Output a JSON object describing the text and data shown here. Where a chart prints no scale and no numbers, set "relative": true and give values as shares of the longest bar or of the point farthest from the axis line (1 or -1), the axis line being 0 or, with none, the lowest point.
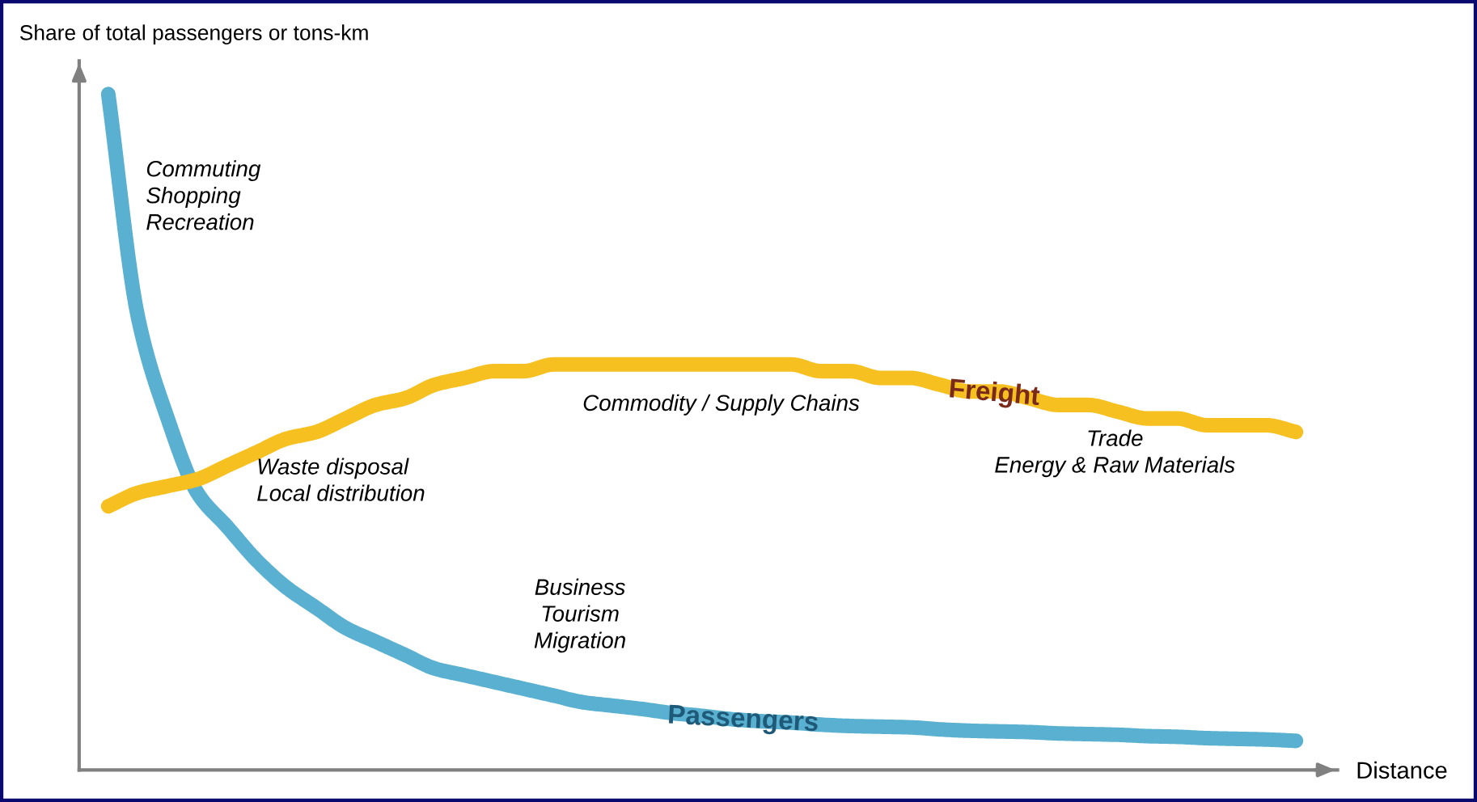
{
  "chart_data": {
    "type": "line",
    "relative": true,
    "ylabel": "Share of total passengers or tons-km",
    "xlabel": "Distance",
    "categories": [
      null,
      null,
      null,
      null,
      null,
      null,
      null,
      null,
      null,
      null,
      null,
      null,
      null,
      null,
      null,
      null,
      null,
      null,
      null,
      null,
      null,
      null,
      null,
      null,
      null,
      null,
      null,
      null,
      null,
      null,
      null,
      null,
      null,
      null,
      null,
      null,
      null,
      null,
      null,
      null,
      null
    ],
    "series": [
      {
        "name": "Passengers",
        "color": "#5ab0d0",
        "values": [
          1.0,
          0.67,
          0.52,
          0.41,
          0.36,
          0.31,
          0.27,
          0.24,
          0.21,
          0.19,
          0.17,
          0.15,
          0.14,
          0.13,
          0.12,
          0.11,
          0.1,
          0.095,
          0.09,
          0.084,
          0.08,
          0.075,
          0.072,
          0.07,
          0.067,
          0.065,
          0.064,
          0.063,
          0.06,
          0.058,
          0.057,
          0.056,
          0.054,
          0.053,
          0.052,
          0.05,
          0.049,
          0.047,
          0.046,
          0.045,
          0.043
        ]
      },
      {
        "name": "Freight",
        "color": "#f5c020",
        "values": [
          0.39,
          0.41,
          0.42,
          0.43,
          0.45,
          0.47,
          0.49,
          0.5,
          0.52,
          0.54,
          0.55,
          0.57,
          0.58,
          0.59,
          0.59,
          0.6,
          0.6,
          0.6,
          0.6,
          0.6,
          0.6,
          0.6,
          0.6,
          0.6,
          0.59,
          0.59,
          0.58,
          0.58,
          0.57,
          0.56,
          0.56,
          0.55,
          0.54,
          0.54,
          0.53,
          0.52,
          0.52,
          0.51,
          0.51,
          0.51,
          0.5
        ]
      }
    ],
    "annotations": [
      "Commuting\nShopping\nRecreation",
      "Waste disposal\nLocal distribution",
      "Commodity / Supply Chains",
      "Business\nTourism\nMigration",
      "Trade\nEnergy & Raw Materials"
    ],
    "legend": false,
    "line_style": "solid"
  }
}
